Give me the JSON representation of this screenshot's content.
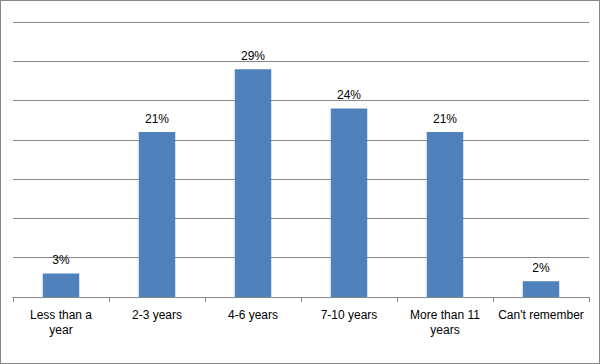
{
  "chart_data": {
    "type": "bar",
    "categories": [
      "Less than a year",
      "2-3 years",
      "4-6 years",
      "7-10 years",
      "More than 11 years",
      "Can't remember"
    ],
    "values": [
      3,
      21,
      29,
      24,
      21,
      2
    ],
    "value_labels": [
      "3%",
      "21%",
      "29%",
      "24%",
      "21%",
      "2%"
    ],
    "color": "#4f81bd",
    "ylim": [
      0,
      35
    ],
    "yticks": [
      0,
      5,
      10,
      15,
      20,
      25,
      30,
      35
    ],
    "grid": true,
    "data_labels": true,
    "tick_labels": "x"
  }
}
